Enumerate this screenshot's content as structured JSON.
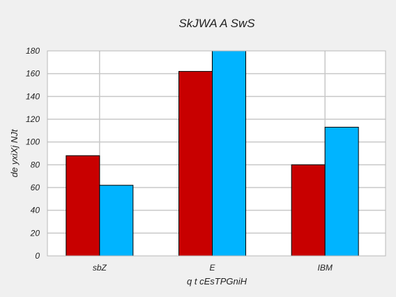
{
  "chart_data": {
    "type": "bar",
    "title": "SkJWA A  SwS",
    "xlabel": "q t cEsTPGniH",
    "ylabel": "de  yxiXj NJt",
    "categories": [
      "sbZ",
      "E",
      "IBM"
    ],
    "series": [
      {
        "values": [
          88,
          162,
          80
        ],
        "color": "#c80000"
      },
      {
        "values": [
          62,
          180,
          113
        ],
        "color": "#00b4ff"
      }
    ],
    "ylim": [
      0,
      180
    ],
    "yticks": [
      0,
      20,
      40,
      60,
      80,
      100,
      120,
      140,
      160,
      180
    ],
    "grid": true,
    "legend": "none"
  }
}
